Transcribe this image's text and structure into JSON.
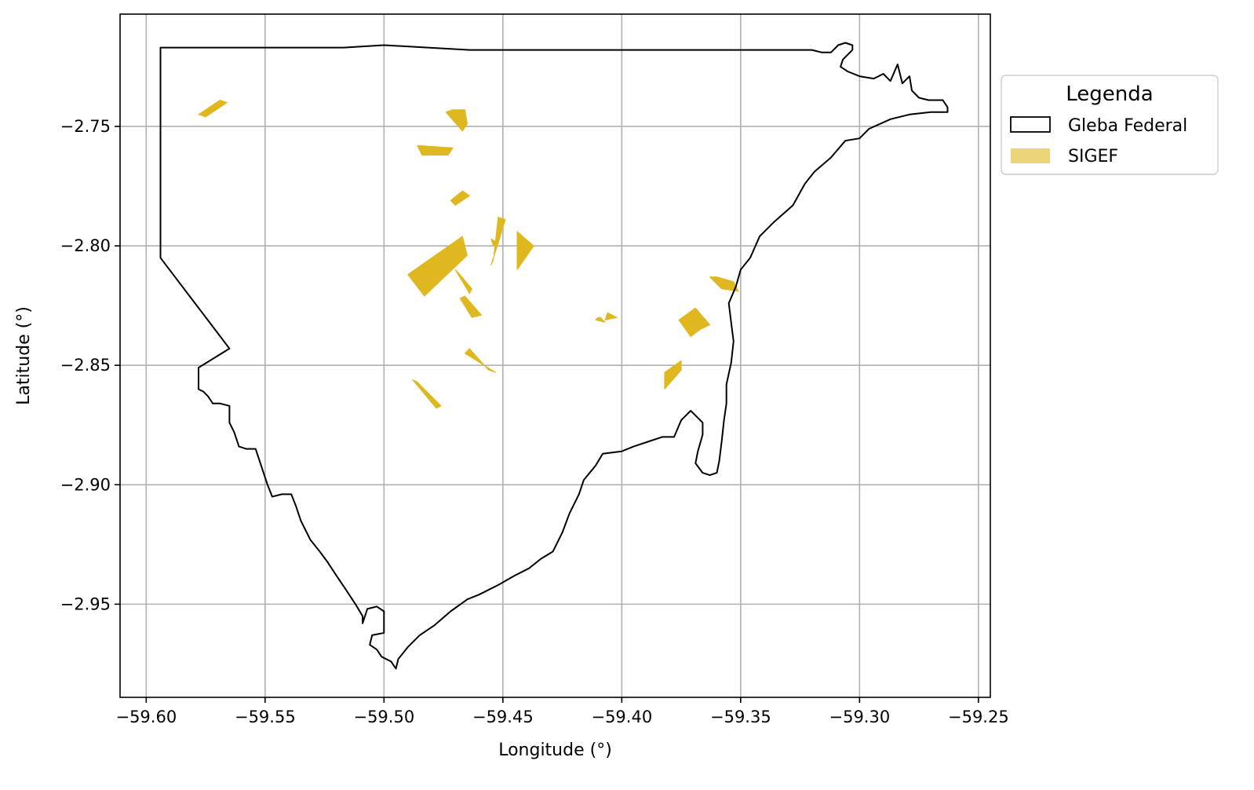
{
  "chart_data": {
    "type": "map",
    "xlabel": "Longitude (°)",
    "ylabel": "Latitude (°)",
    "xlim": [
      -59.611,
      -59.245
    ],
    "ylim": [
      -2.989,
      -2.703
    ],
    "xticks": [
      -59.6,
      -59.55,
      -59.5,
      -59.45,
      -59.4,
      -59.35,
      -59.3,
      -59.25
    ],
    "xtick_labels": [
      "−59.60",
      "−59.55",
      "−59.50",
      "−59.45",
      "−59.40",
      "−59.35",
      "−59.30",
      "−59.25"
    ],
    "yticks": [
      -2.75,
      -2.8,
      -2.85,
      -2.9,
      -2.95
    ],
    "ytick_labels": [
      "−2.75",
      "−2.80",
      "−2.85",
      "−2.90",
      "−2.95"
    ],
    "grid": true,
    "colors": {
      "outline": "#000000",
      "sigef": "#dfb820",
      "grid": "#b0b0b0"
    },
    "legend": {
      "title": "Legenda",
      "placement": "right-outside-top",
      "entries": [
        {
          "label": "Gleba Federal",
          "style": "outline"
        },
        {
          "label": "SIGEF",
          "style": "fill"
        }
      ]
    },
    "gleba_outline": [
      [
        -59.594,
        -2.717
      ],
      [
        -59.517,
        -2.717
      ],
      [
        -59.5,
        -2.716
      ],
      [
        -59.464,
        -2.718
      ],
      [
        -59.35,
        -2.718
      ],
      [
        -59.32,
        -2.718
      ],
      [
        -59.316,
        -2.719
      ],
      [
        -59.312,
        -2.719
      ],
      [
        -59.309,
        -2.716
      ],
      [
        -59.306,
        -2.715
      ],
      [
        -59.303,
        -2.716
      ],
      [
        -59.303,
        -2.718
      ],
      [
        -59.305,
        -2.72
      ],
      [
        -59.307,
        -2.722
      ],
      [
        -59.308,
        -2.725
      ],
      [
        -59.305,
        -2.727
      ],
      [
        -59.3,
        -2.729
      ],
      [
        -59.294,
        -2.73
      ],
      [
        -59.29,
        -2.728
      ],
      [
        -59.287,
        -2.731
      ],
      [
        -59.284,
        -2.724
      ],
      [
        -59.282,
        -2.732
      ],
      [
        -59.279,
        -2.729
      ],
      [
        -59.278,
        -2.735
      ],
      [
        -59.275,
        -2.738
      ],
      [
        -59.271,
        -2.739
      ],
      [
        -59.265,
        -2.739
      ],
      [
        -59.263,
        -2.742
      ],
      [
        -59.263,
        -2.744
      ],
      [
        -59.27,
        -2.744
      ],
      [
        -59.279,
        -2.745
      ],
      [
        -59.287,
        -2.747
      ],
      [
        -59.296,
        -2.751
      ],
      [
        -59.3,
        -2.755
      ],
      [
        -59.306,
        -2.756
      ],
      [
        -59.312,
        -2.763
      ],
      [
        -59.319,
        -2.769
      ],
      [
        -59.323,
        -2.774
      ],
      [
        -59.328,
        -2.783
      ],
      [
        -59.336,
        -2.79
      ],
      [
        -59.342,
        -2.796
      ],
      [
        -59.346,
        -2.805
      ],
      [
        -59.35,
        -2.81
      ],
      [
        -59.352,
        -2.817
      ],
      [
        -59.355,
        -2.824
      ],
      [
        -59.354,
        -2.832
      ],
      [
        -59.353,
        -2.84
      ],
      [
        -59.354,
        -2.849
      ],
      [
        -59.356,
        -2.858
      ],
      [
        -59.356,
        -2.866
      ],
      [
        -59.357,
        -2.873
      ],
      [
        -59.358,
        -2.882
      ],
      [
        -59.359,
        -2.89
      ],
      [
        -59.36,
        -2.895
      ],
      [
        -59.363,
        -2.896
      ],
      [
        -59.366,
        -2.895
      ],
      [
        -59.369,
        -2.891
      ],
      [
        -59.368,
        -2.886
      ],
      [
        -59.366,
        -2.879
      ],
      [
        -59.366,
        -2.874
      ],
      [
        -59.368,
        -2.872
      ],
      [
        -59.371,
        -2.869
      ],
      [
        -59.375,
        -2.873
      ],
      [
        -59.378,
        -2.88
      ],
      [
        -59.383,
        -2.88
      ],
      [
        -59.389,
        -2.882
      ],
      [
        -59.395,
        -2.884
      ],
      [
        -59.4,
        -2.886
      ],
      [
        -59.408,
        -2.887
      ],
      [
        -59.411,
        -2.892
      ],
      [
        -59.416,
        -2.898
      ],
      [
        -59.418,
        -2.904
      ],
      [
        -59.422,
        -2.912
      ],
      [
        -59.425,
        -2.92
      ],
      [
        -59.429,
        -2.928
      ],
      [
        -59.434,
        -2.931
      ],
      [
        -59.439,
        -2.935
      ],
      [
        -59.445,
        -2.938
      ],
      [
        -59.452,
        -2.942
      ],
      [
        -59.46,
        -2.946
      ],
      [
        -59.465,
        -2.948
      ],
      [
        -59.472,
        -2.953
      ],
      [
        -59.479,
        -2.959
      ],
      [
        -59.485,
        -2.963
      ],
      [
        -59.49,
        -2.968
      ],
      [
        -59.494,
        -2.973
      ],
      [
        -59.495,
        -2.977
      ],
      [
        -59.497,
        -2.974
      ],
      [
        -59.501,
        -2.972
      ],
      [
        -59.503,
        -2.969
      ],
      [
        -59.506,
        -2.967
      ],
      [
        -59.505,
        -2.963
      ],
      [
        -59.5,
        -2.962
      ],
      [
        -59.5,
        -2.953
      ],
      [
        -59.503,
        -2.951
      ],
      [
        -59.507,
        -2.952
      ],
      [
        -59.509,
        -2.958
      ],
      [
        -59.509,
        -2.955
      ],
      [
        -59.512,
        -2.95
      ],
      [
        -59.516,
        -2.944
      ],
      [
        -59.52,
        -2.938
      ],
      [
        -59.524,
        -2.932
      ],
      [
        -59.527,
        -2.928
      ],
      [
        -59.531,
        -2.923
      ],
      [
        -59.535,
        -2.915
      ],
      [
        -59.537,
        -2.909
      ],
      [
        -59.539,
        -2.904
      ],
      [
        -59.543,
        -2.904
      ],
      [
        -59.547,
        -2.905
      ],
      [
        -59.549,
        -2.9
      ],
      [
        -59.552,
        -2.891
      ],
      [
        -59.554,
        -2.885
      ],
      [
        -59.558,
        -2.885
      ],
      [
        -59.561,
        -2.884
      ],
      [
        -59.563,
        -2.878
      ],
      [
        -59.565,
        -2.874
      ],
      [
        -59.565,
        -2.867
      ],
      [
        -59.569,
        -2.866
      ],
      [
        -59.572,
        -2.866
      ],
      [
        -59.574,
        -2.863
      ],
      [
        -59.576,
        -2.861
      ],
      [
        -59.578,
        -2.86
      ],
      [
        -59.578,
        -2.851
      ],
      [
        -59.565,
        -2.843
      ],
      [
        -59.594,
        -2.805
      ],
      [
        -59.594,
        -2.75
      ],
      [
        -59.594,
        -2.717
      ]
    ],
    "sigef_parcels": [
      [
        [
          -59.578,
          -2.745
        ],
        [
          -59.569,
          -2.739
        ],
        [
          -59.566,
          -2.74
        ],
        [
          -59.575,
          -2.746
        ]
      ],
      [
        [
          -59.471,
          -2.743
        ],
        [
          -59.466,
          -2.743
        ],
        [
          -59.465,
          -2.749
        ],
        [
          -59.467,
          -2.752
        ],
        [
          -59.474,
          -2.744
        ]
      ],
      [
        [
          -59.486,
          -2.758
        ],
        [
          -59.471,
          -2.759
        ],
        [
          -59.473,
          -2.762
        ],
        [
          -59.484,
          -2.762
        ]
      ],
      [
        [
          -59.467,
          -2.777
        ],
        [
          -59.464,
          -2.779
        ],
        [
          -59.47,
          -2.783
        ],
        [
          -59.472,
          -2.781
        ]
      ],
      [
        [
          -59.467,
          -2.796
        ],
        [
          -59.465,
          -2.804
        ],
        [
          -59.483,
          -2.821
        ],
        [
          -59.49,
          -2.812
        ]
      ],
      [
        [
          -59.452,
          -2.788
        ],
        [
          -59.449,
          -2.789
        ],
        [
          -59.452,
          -2.799
        ],
        [
          -59.455,
          -2.808
        ],
        [
          -59.454,
          -2.806
        ]
      ],
      [
        [
          -59.455,
          -2.797
        ],
        [
          -59.454,
          -2.8
        ],
        [
          -59.453,
          -2.8
        ],
        [
          -59.452,
          -2.799
        ]
      ],
      [
        [
          -59.444,
          -2.794
        ],
        [
          -59.437,
          -2.8
        ],
        [
          -59.444,
          -2.81
        ]
      ],
      [
        [
          -59.47,
          -2.81
        ],
        [
          -59.469,
          -2.811
        ],
        [
          -59.463,
          -2.818
        ],
        [
          -59.464,
          -2.82
        ]
      ],
      [
        [
          -59.466,
          -2.821
        ],
        [
          -59.468,
          -2.822
        ],
        [
          -59.463,
          -2.83
        ],
        [
          -59.459,
          -2.829
        ]
      ],
      [
        [
          -59.409,
          -2.83
        ],
        [
          -59.407,
          -2.832
        ],
        [
          -59.411,
          -2.831
        ],
        [
          -59.41,
          -2.83
        ]
      ],
      [
        [
          -59.406,
          -2.828
        ],
        [
          -59.402,
          -2.83
        ],
        [
          -59.407,
          -2.831
        ]
      ],
      [
        [
          -59.363,
          -2.813
        ],
        [
          -59.358,
          -2.818
        ],
        [
          -59.351,
          -2.819
        ],
        [
          -59.353,
          -2.815
        ],
        [
          -59.36,
          -2.813
        ]
      ],
      [
        [
          -59.376,
          -2.831
        ],
        [
          -59.369,
          -2.826
        ],
        [
          -59.363,
          -2.833
        ],
        [
          -59.367,
          -2.835
        ],
        [
          -59.371,
          -2.838
        ]
      ],
      [
        [
          -59.464,
          -2.843
        ],
        [
          -59.456,
          -2.852
        ],
        [
          -59.453,
          -2.853
        ],
        [
          -59.466,
          -2.845
        ]
      ],
      [
        [
          -59.375,
          -2.848
        ],
        [
          -59.382,
          -2.853
        ],
        [
          -59.382,
          -2.86
        ],
        [
          -59.375,
          -2.852
        ]
      ],
      [
        [
          -59.488,
          -2.856
        ],
        [
          -59.486,
          -2.857
        ],
        [
          -59.476,
          -2.867
        ],
        [
          -59.478,
          -2.868
        ]
      ]
    ]
  }
}
